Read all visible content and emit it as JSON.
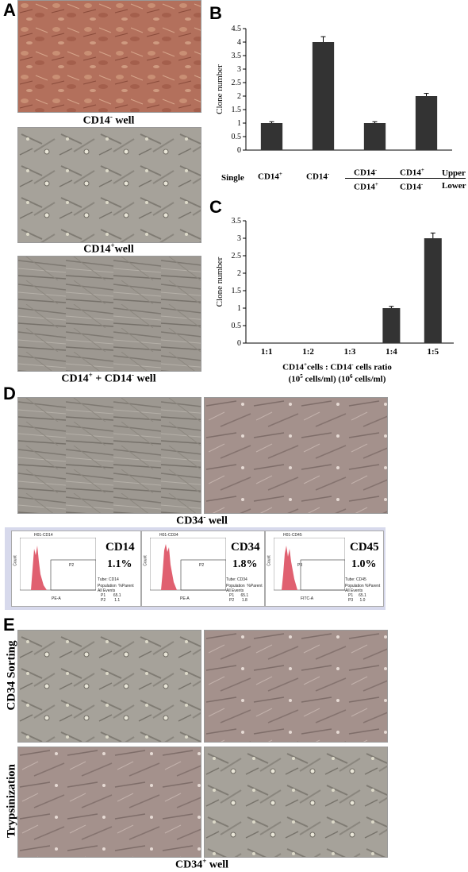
{
  "panels": {
    "A": {
      "letter": "A",
      "captions": {
        "cd14neg": {
          "main": "CD14",
          "sup": "-",
          "rest": " well"
        },
        "cd14pos": {
          "main": "CD14",
          "sup": "+",
          "rest": "well"
        },
        "combo": {
          "a": "CD14",
          "sup1": "+",
          "mid": " + CD14",
          "sup2": "-",
          "rest": " well"
        }
      }
    },
    "B": {
      "letter": "B",
      "row_labels": {
        "single": "Single",
        "upper": "Upper",
        "lower": "Lower"
      },
      "cat_labels": [
        {
          "text": "CD14",
          "sup": "+"
        },
        {
          "text": "CD14",
          "sup": "-"
        },
        {
          "top": "CD14",
          "top_sup": "-",
          "bottom": "CD14",
          "bottom_sup": "+"
        },
        {
          "top": "CD14",
          "top_sup": "+",
          "bottom": "CD14",
          "bottom_sup": "-"
        }
      ]
    },
    "C": {
      "letter": "C",
      "xlabel_line1": {
        "a": "CD14",
        "a_sup": "+",
        "b": "cells : CD14",
        "b_sup": "-",
        "c": " cells ratio"
      },
      "xlabel_line2": {
        "a": "(10",
        "a_sup": "5",
        "b": " cells/ml)  (10",
        "b_sup": "6",
        "c": " cells/ml)"
      }
    },
    "D": {
      "letter": "D",
      "caption": {
        "main": "CD34",
        "sup": "-",
        "rest": "  well"
      },
      "flow": [
        {
          "gate_title": "H01-CD14",
          "gate": "P2",
          "marker": "CD14",
          "percent": "1.1%",
          "xaxis": "PE-A",
          "tube": "CD14",
          "p1": "P1",
          "p1v": "65.1",
          "p2": "P2",
          "p2v": "1.1"
        },
        {
          "gate_title": "H01-CD34",
          "gate": "P2",
          "marker": "CD34",
          "percent": "1.8%",
          "xaxis": "PE-A",
          "tube": "CD34",
          "p1": "P1",
          "p1v": "65.1",
          "p2": "P2",
          "p2v": "1.8"
        },
        {
          "gate_title": "H01-CD45",
          "gate": "P3",
          "marker": "CD45",
          "percent": "1.0%",
          "xaxis": "FITC-A",
          "tube": "CD45",
          "p1": "P1",
          "p1v": "65.1",
          "p2": "P3",
          "p2v": "1.0"
        }
      ],
      "flow_common": {
        "count": "Count",
        "tube_label": "Tube:",
        "population": "Population",
        "parent": "%Parent",
        "all_events": "All Events"
      }
    },
    "E": {
      "letter": "E",
      "row1": "CD34 Sorting",
      "row2": "Trypsinization",
      "caption": {
        "main": "CD34",
        "sup": "+",
        "rest": " well"
      }
    }
  },
  "chart_data": [
    {
      "type": "bar",
      "panel": "B",
      "categories": [
        "CD14+",
        "CD14-",
        "CD14- / CD14+",
        "CD14+ / CD14-"
      ],
      "values": [
        1,
        4,
        1,
        2
      ],
      "errors": [
        0.05,
        0.2,
        0.05,
        0.1
      ],
      "ylabel": "Clone number",
      "ylim": [
        0,
        4.5
      ],
      "yticks": [
        "0",
        "0.5",
        "1",
        "1.5",
        "2",
        "2.5",
        "3",
        "3.5",
        "4",
        "4.5"
      ],
      "bar_color": "#333333"
    },
    {
      "type": "bar",
      "panel": "C",
      "categories": [
        "1:1",
        "1:2",
        "1:3",
        "1:4",
        "1:5"
      ],
      "values": [
        0,
        0,
        0,
        1,
        3
      ],
      "errors": [
        0,
        0,
        0,
        0.05,
        0.15
      ],
      "ylabel": "Clone number",
      "ylim": [
        0,
        3.5
      ],
      "yticks": [
        "0",
        "0.5",
        "1",
        "1.5",
        "2",
        "2.5",
        "3",
        "3.5"
      ],
      "bar_color": "#333333"
    }
  ]
}
